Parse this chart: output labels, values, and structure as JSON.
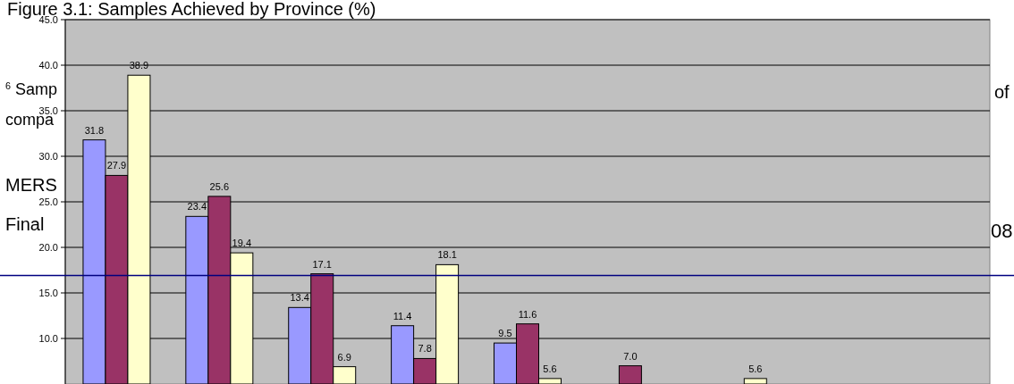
{
  "chart_data": {
    "type": "bar",
    "title": "Figure 3.1: Samples Achieved by Province (%)",
    "categories": [
      null,
      null,
      null,
      null,
      null,
      null,
      null,
      null,
      null
    ],
    "series": [
      {
        "color": "#9999ff",
        "values": [
          31.8,
          23.4,
          13.4,
          11.4,
          9.5,
          null,
          null,
          null,
          null
        ],
        "value_labels": [
          "31.8",
          "23.4",
          "13.4",
          "11.4",
          "9.5",
          null,
          null,
          null,
          null
        ]
      },
      {
        "color": "#993366",
        "values": [
          27.9,
          25.6,
          17.1,
          7.8,
          11.6,
          7.0,
          null,
          null,
          null
        ],
        "value_labels": [
          "27.9",
          "25.6",
          "17.1",
          "7.8",
          "11.6",
          "7.0",
          null,
          null,
          null
        ]
      },
      {
        "color": "#ffffcc",
        "values": [
          38.9,
          19.4,
          6.9,
          18.1,
          5.6,
          null,
          5.6,
          null,
          null
        ],
        "value_labels": [
          "38.9",
          "19.4",
          "6.9",
          "18.1",
          "5.6",
          null,
          "5.6",
          null,
          null
        ]
      }
    ],
    "ylim": [
      5,
      45
    ],
    "yticks": [
      {
        "value": 10,
        "label": "10.0"
      },
      {
        "value": 15,
        "label": "15.0"
      },
      {
        "value": 20,
        "label": "20.0"
      },
      {
        "value": 25,
        "label": "25.0"
      },
      {
        "value": 30,
        "label": "30.0"
      },
      {
        "value": 35,
        "label": "35.0"
      },
      {
        "value": 40,
        "label": "40.0"
      },
      {
        "value": 45,
        "label": "45.0"
      }
    ],
    "grid": "y",
    "ref_lines": [
      {
        "axis": "y",
        "value": 16.9,
        "color": "#000080"
      }
    ],
    "annotations": [
      "$^{6}$ Samp",
      "compa",
      "of",
      "MERS",
      "Final",
      "08"
    ]
  }
}
